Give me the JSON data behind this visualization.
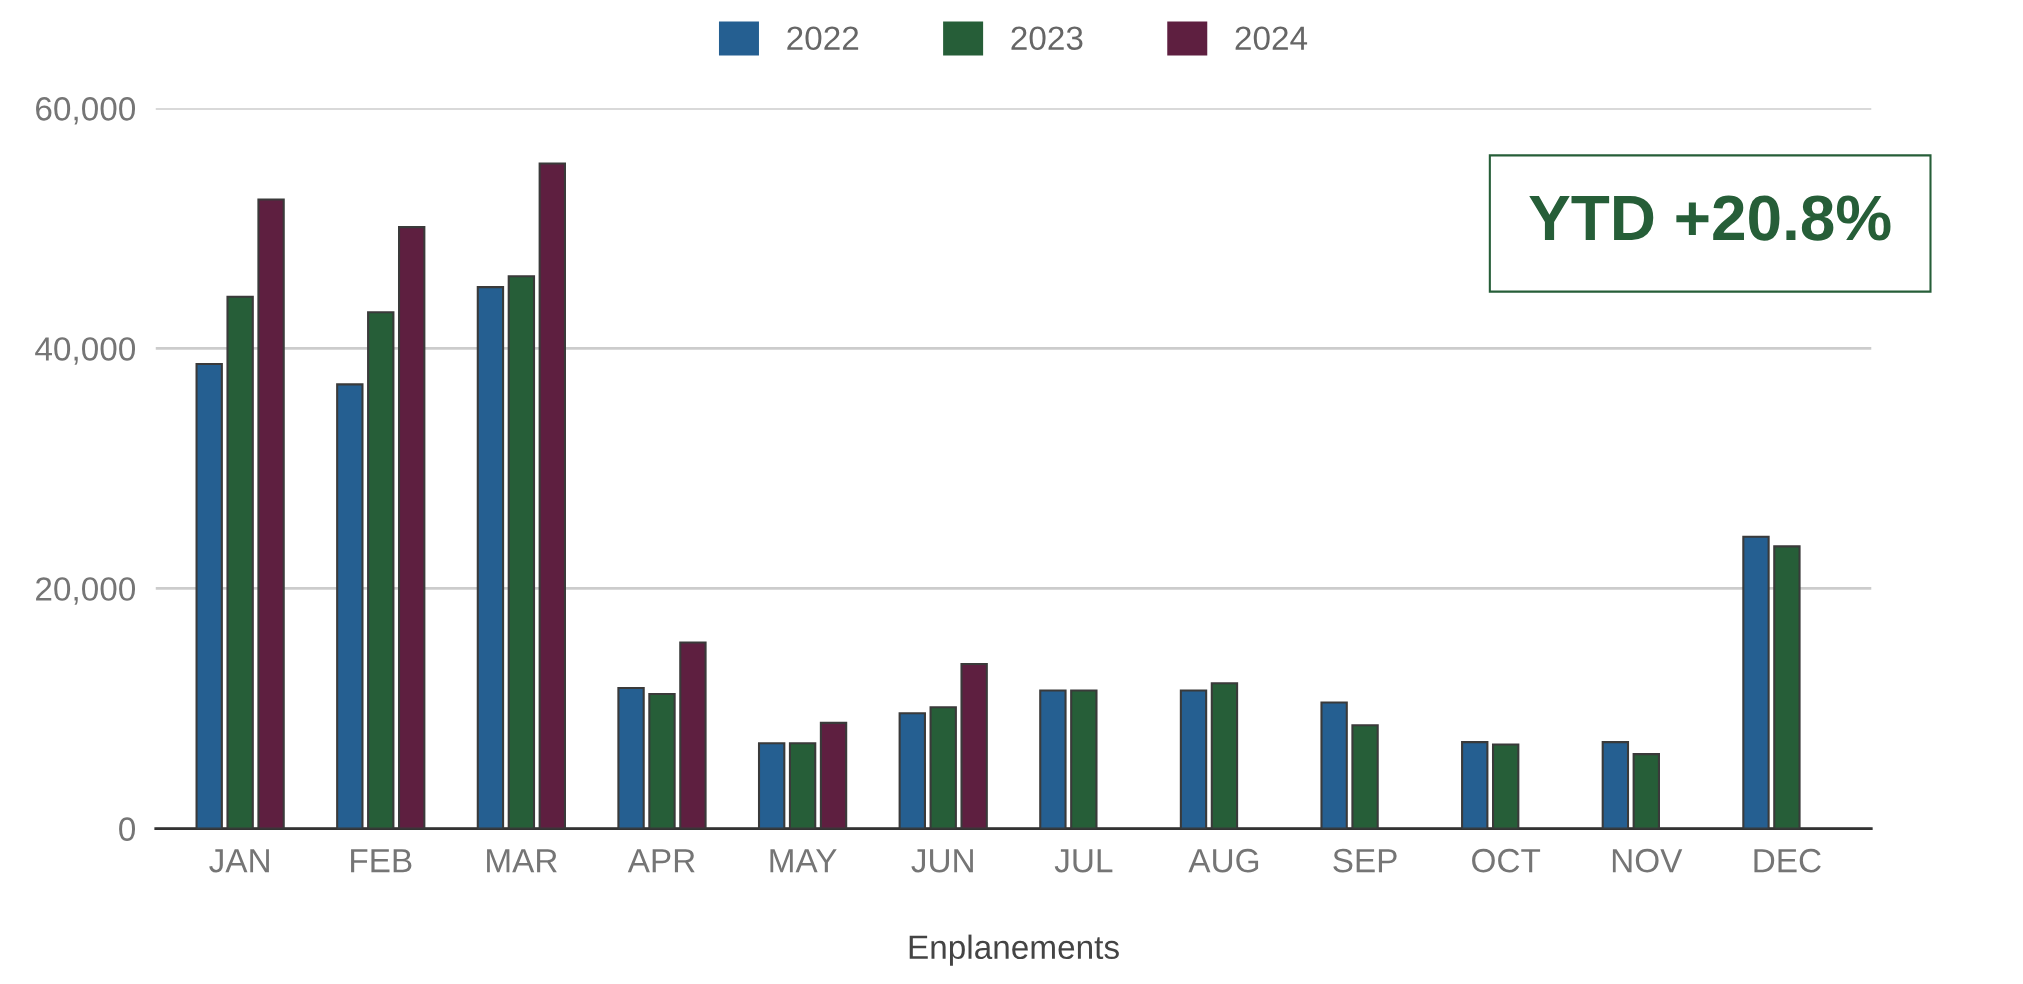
{
  "chart_data": {
    "type": "bar",
    "xlabel": "Enplanements",
    "categories": [
      "JAN",
      "FEB",
      "MAR",
      "APR",
      "MAY",
      "JUN",
      "JUL",
      "AUG",
      "SEP",
      "OCT",
      "NOV",
      "DEC"
    ],
    "series": [
      {
        "name": "2022",
        "color": "#255f91",
        "values": [
          38700,
          37000,
          45100,
          11700,
          7100,
          9600,
          11500,
          11500,
          10500,
          7200,
          7200,
          24300
        ]
      },
      {
        "name": "2023",
        "color": "#265e38",
        "values": [
          44300,
          43000,
          46000,
          11200,
          7100,
          10100,
          11500,
          12100,
          8600,
          7000,
          6200,
          23500
        ]
      },
      {
        "name": "2024",
        "color": "#5e1f40",
        "values": [
          52400,
          50100,
          55400,
          15500,
          8800,
          13700,
          null,
          null,
          null,
          null,
          null,
          null
        ]
      }
    ],
    "ylim": [
      0,
      60000
    ],
    "yticks": [
      {
        "value": 0,
        "label": "0"
      },
      {
        "value": 20000,
        "label": "20,000"
      },
      {
        "value": 40000,
        "label": "40,000"
      },
      {
        "value": 60000,
        "label": "60,000"
      }
    ],
    "grid": "y",
    "legend": "top",
    "annotations": [
      "YTD +20.8%"
    ]
  }
}
